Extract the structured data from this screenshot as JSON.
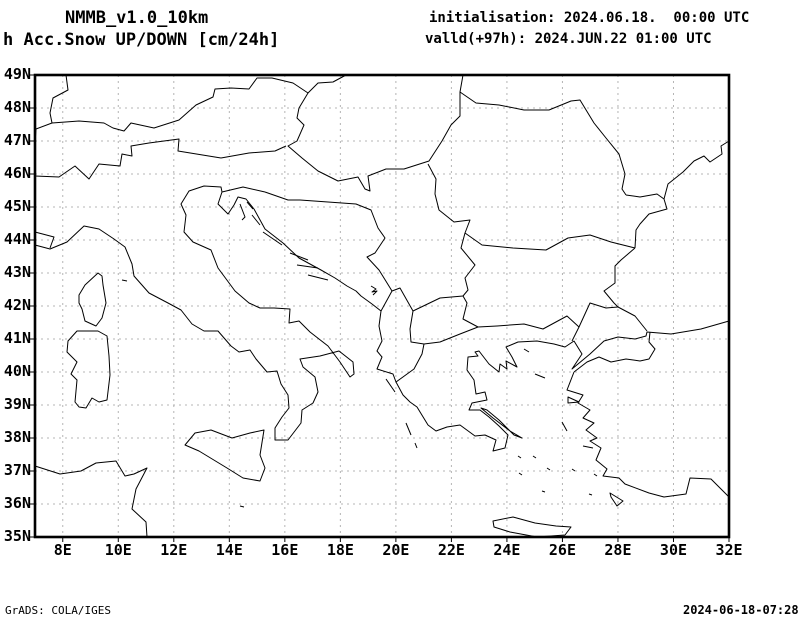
{
  "header": {
    "model": "NMMB_v1.0_10km",
    "product": "h Acc.Snow UP/DOWN [cm/24h]",
    "init_line": "initialisation: 2024.06.18.  00:00 UTC",
    "valid_line": "valld(+97h): 2024.JUN.22 01:00 UTC"
  },
  "footer": {
    "left": "GrADS: COLA/IGES",
    "right": "2024-06-18-07:28"
  },
  "map": {
    "lat_labels": [
      "49N",
      "48N",
      "47N",
      "46N",
      "45N",
      "44N",
      "43N",
      "42N",
      "41N",
      "40N",
      "39N",
      "38N",
      "37N",
      "36N",
      "35N"
    ],
    "lon_labels": [
      "8E",
      "10E",
      "12E",
      "14E",
      "16E",
      "18E",
      "20E",
      "22E",
      "24E",
      "26E",
      "28E",
      "30E",
      "32E"
    ],
    "grid_color": "#b4b4b4",
    "line_color": "#000000",
    "frame_color": "#000000",
    "paths": [
      "M0,170 L15,174 32,167 49,151 64,154 79,164 90,172 97,189 99,201 114,218 133,228 146,235 157,249 169,256 183,256 196,271 204,277 215,275 221,284 232,297 242,296 246,309 253,320 254,333 247,342 240,353 240,365 253,365 266,348 267,335 278,328 283,317 280,302 268,292 265,284 285,281 304,276 318,287 319,299 315,302 305,287 293,271 275,257 264,246 254,248 255,234 239,233 225,233 214,228 200,216 183,193 176,175 158,167 149,157 151,140 146,129 154,116 169,111 186,112 187,117 183,129 193,139 199,130 203,122 211,124 219,134 230,154 248,168 264,183 286,195 300,203 312,211 321,216 326,221 337,229 346,236 344,251 347,266 342,276 347,282 342,294 358,299 361,307 368,320 375,327 382,332 393,350 401,356 412,352 425,350 440,361 450,360 461,365 458,376 470,373 473,360 464,351 454,342 445,335 434,335 437,328 452,325 450,317 441,319 439,305 432,295 433,282 443,281 440,277 444,276 454,289 464,297 465,289 472,294 471,286 482,292 477,282 471,272 483,267 502,266 519,269 530,272 539,266 547,279 537,294 555,279 569,266 583,262 600,264 611,261 612,257 636,259 666,254 694,246",
      "M539,297 552,287 564,282 576,287 591,284 605,286 614,284 620,274 614,267 615,257",
      "M539,297 532,315 548,320 543,328 555,335 548,343 559,348 551,355 562,363 555,366 566,373 561,385 572,394 568,401 584,403 590,409 614,418 629,422 651,419 655,403 676,404 694,422",
      "M150,370 160,358 176,355 197,363 215,358 229,355 225,380 230,393 225,406 208,403 192,393 164,376 Z",
      "M33,266 42,256 63,256 72,261 74,281 75,300 72,325 64,327 57,323 51,333 44,332 40,327 42,305 36,299 42,287 32,277 Z",
      "M44,220 50,210 63,198 67,201 68,210 71,228 67,243 61,251 50,246 47,234 44,228 Z",
      "M0,391 25,399 46,396 61,388 81,386 90,401 99,399 112,393 101,414 97,434 111,447 112,462",
      "M458,446 478,442 500,448 521,451 536,452 530,460 502,462 475,457 459,452 Z",
      "M205,129 L210,142 207,145 M212,127 L218,134 M217,140 L225,150 M228,157 L247,170 M255,178 L273,185 M262,190 L283,193 M273,200 L293,205 M351,304 L360,317 M371,348 L376,360 M380,368 L382,373 M446,333 458,343 475,356 487,363 479,360 464,345 452,335 Z M500,299 L510,303 M489,274 L494,277 M533,322 544,327 533,328 Z M527,347 L532,356 M548,371 L558,373 M483,381 L486,383 M498,381 L501,383 M512,393 L515,395 M507,416 L510,417 M484,398 L487,400 M537,394 L540,396 M559,399 L562,401 M554,419 L557,420 M575,418 588,426 582,431 576,422 Z M87,205 L92,206 M205,431 L209,432",
      "M336,211 341,214 337,217 342,216 338,220",
      "M31,0 33,15 18,23 15,38 17,48 44,46 69,48 78,53 89,56 96,48 119,53 144,45 161,30 178,22 180,14 196,13 214,14 222,3 237,3 258,8 273,18 283,8 298,7 311,0",
      "M273,18 264,33 262,43 269,50 262,66 253,71 267,83 283,96 303,106 323,102 330,114 335,116 333,101 351,94 369,94 394,86 407,66 416,50 425,41 425,17 428,0",
      "M425,17 441,28 464,30 489,35 514,35 536,26 545,25 559,48 571,63 584,79 590,99 587,114 591,120",
      "M393,89 401,104 400,119 404,135 419,147 435,145 430,158 447,170 478,173 511,175 533,163 555,160 576,167 600,173",
      "M430,158 426,173 440,190 430,203 433,215 428,221 432,228 428,244 443,252 462,251 489,249 508,254 532,241 544,252 555,228 571,233 583,232",
      "M544,252 537,266",
      "M346,236 357,216 365,213 378,236 375,254 376,267 389,269 405,267 425,259 443,252",
      "M378,236 405,223 428,221",
      "M389,269 387,279 379,294 361,307",
      "M600,173 586,185 580,191 580,208 569,216 579,228 583,232 600,241 612,256",
      "M591,120 605,122 622,119 629,124 632,134 614,139 605,149 601,155 600,173",
      "M629,124 633,109 648,97 659,86 669,81 675,87 687,79 686,71 694,66",
      "M230,117 253,125 265,125 293,127 321,129 336,135 343,153 350,163 340,178 332,182 344,195 357,216",
      "M187,117 208,112 230,117",
      "M186,83 214,78 240,76 251,71",
      "M0,101 24,102 40,91 54,104 64,89 85,91 87,79 97,81 96,71 114,68 144,64 143,76 186,83",
      "M0,69 1,54 17,48",
      "M15,173 19,162 0,157"
    ]
  }
}
